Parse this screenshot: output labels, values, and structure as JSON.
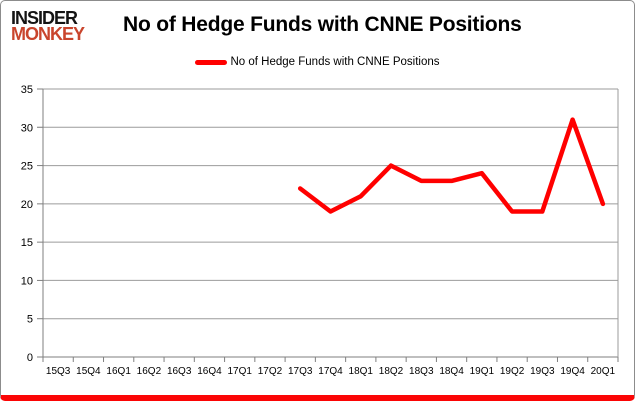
{
  "logo": {
    "line1": "INSIDER",
    "line2": "MONKEY"
  },
  "legend": {
    "label": "No of Hedge Funds with CNNE Positions"
  },
  "colors": {
    "line": "#ff0000",
    "grid": "#9b9b9b",
    "axis": "#7f7f7f",
    "logo_black": "#141414",
    "logo_red": "#c9452d",
    "card_bottom_bar": "#fb0505"
  },
  "chart_data": {
    "type": "line",
    "title": "No of Hedge Funds with CNNE Positions",
    "xlabel": "",
    "ylabel": "",
    "categories": [
      "15Q3",
      "15Q4",
      "16Q1",
      "16Q2",
      "16Q3",
      "16Q4",
      "17Q1",
      "17Q2",
      "17Q3",
      "17Q4",
      "18Q1",
      "18Q2",
      "18Q3",
      "18Q4",
      "19Q1",
      "19Q2",
      "19Q3",
      "19Q4",
      "20Q1"
    ],
    "series": [
      {
        "name": "No of Hedge Funds with CNNE Positions",
        "values": [
          null,
          null,
          null,
          null,
          null,
          null,
          null,
          null,
          22,
          19,
          21,
          25,
          23,
          23,
          24,
          19,
          19,
          31,
          20
        ]
      }
    ],
    "ylim": [
      0,
      35
    ],
    "ytick_step": 5,
    "grid": true,
    "legend_position": "top"
  }
}
